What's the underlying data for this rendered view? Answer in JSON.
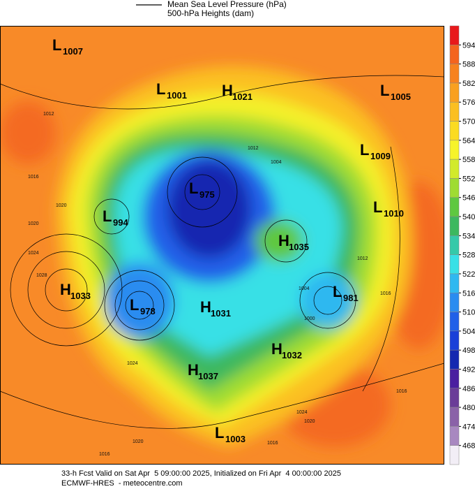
{
  "legend": {
    "line1": "Mean Sea Level Pressure (hPa)",
    "line2": "500-hPa Heights (dam)"
  },
  "colorbar": {
    "labels": [
      594,
      588,
      582,
      576,
      570,
      564,
      558,
      552,
      546,
      540,
      534,
      528,
      522,
      516,
      510,
      504,
      498,
      492,
      486,
      480,
      474,
      468
    ],
    "colors": [
      "#e8191b",
      "#f4641e",
      "#f7821e",
      "#f9a01f",
      "#fbbf21",
      "#fbdb22",
      "#f6f32a",
      "#d2ea2b",
      "#9fdc32",
      "#5ec840",
      "#3cb85f",
      "#35c9a9",
      "#38e0e6",
      "#2fb8f0",
      "#2a8cf0",
      "#2060e8",
      "#1a40d8",
      "#1428b0",
      "#4a1fa0",
      "#6a3c98",
      "#8a62a8",
      "#a888c0",
      "#f2eef6"
    ]
  },
  "centers": [
    {
      "letter": "L",
      "value": "1007"
    },
    {
      "letter": "L",
      "value": "1001"
    },
    {
      "letter": "H",
      "value": "1021"
    },
    {
      "letter": "L",
      "value": "1005"
    },
    {
      "letter": "L",
      "value": "1009"
    },
    {
      "letter": "L",
      "value": "975"
    },
    {
      "letter": "L",
      "value": "994"
    },
    {
      "letter": "L",
      "value": "1010"
    },
    {
      "letter": "H",
      "value": "1035"
    },
    {
      "letter": "H",
      "value": "1033"
    },
    {
      "letter": "L",
      "value": "978"
    },
    {
      "letter": "H",
      "value": "1031"
    },
    {
      "letter": "L",
      "value": "981"
    },
    {
      "letter": "H",
      "value": "1032"
    },
    {
      "letter": "H",
      "value": "1037"
    },
    {
      "letter": "L",
      "value": "1003"
    }
  ],
  "isobar_labels": [
    "1012",
    "1016",
    "1020",
    "1020",
    "1024",
    "1028",
    "1012",
    "1004",
    "1012",
    "1016",
    "1004",
    "1000",
    "1024",
    "1020",
    "1016",
    "1024",
    "1020",
    "1016",
    "1016"
  ],
  "footer": {
    "line1": "33-h Fcst Valid on Sat Apr  5 09:00:00 2025, Initialized on Fri Apr  4 00:00:00 2025",
    "line2": "ECMWF-HRES  - meteocentre.com"
  }
}
